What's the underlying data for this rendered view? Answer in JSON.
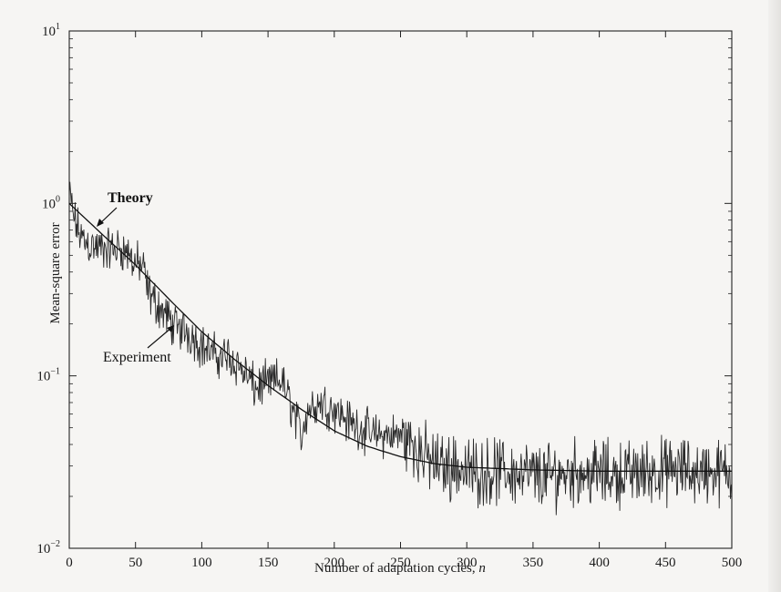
{
  "chart_data": {
    "type": "line",
    "xlabel": "Number of adaptation cycles,",
    "xlabel_var": "n",
    "ylabel": "Mean-square error",
    "x_ticks": [
      0,
      50,
      100,
      150,
      200,
      250,
      300,
      350,
      400,
      450,
      500
    ],
    "y_ticks": [
      {
        "value": 0.01,
        "base": "10",
        "exp": "−2"
      },
      {
        "value": 0.1,
        "base": "10",
        "exp": "−1"
      },
      {
        "value": 1,
        "base": "10",
        "exp": "0"
      },
      {
        "value": 10,
        "base": "10",
        "exp": "1"
      }
    ],
    "xlim": [
      0,
      500
    ],
    "ylim": [
      0.01,
      10
    ],
    "y_scale": "log",
    "grid": false,
    "annotations": [
      {
        "text": "Theory",
        "points_to": "Theory curve near n = 25"
      },
      {
        "text": "Experiment",
        "points_to": "Experiment curve near n = 70"
      }
    ],
    "series": [
      {
        "name": "Theory",
        "style": "smooth",
        "x": [
          0,
          25,
          50,
          75,
          100,
          125,
          150,
          175,
          200,
          225,
          250,
          275,
          300,
          325,
          350,
          400,
          450,
          500
        ],
        "y": [
          1.0,
          0.66,
          0.44,
          0.28,
          0.18,
          0.124,
          0.088,
          0.064,
          0.048,
          0.039,
          0.034,
          0.031,
          0.0295,
          0.029,
          0.0285,
          0.028,
          0.028,
          0.028
        ]
      },
      {
        "name": "Experiment",
        "style": "noisy",
        "x": [
          0,
          5,
          10,
          20,
          30,
          40,
          50,
          55,
          60,
          70,
          80,
          90,
          100,
          110,
          120,
          130,
          140,
          150,
          160,
          170,
          175,
          180,
          190,
          200,
          210,
          220,
          230,
          240,
          250,
          260,
          270,
          280,
          290,
          300,
          320,
          340,
          360,
          380,
          400,
          420,
          440,
          460,
          480,
          500
        ],
        "y": [
          1.1,
          0.75,
          0.62,
          0.55,
          0.54,
          0.55,
          0.45,
          0.43,
          0.3,
          0.24,
          0.19,
          0.18,
          0.15,
          0.13,
          0.13,
          0.11,
          0.085,
          0.09,
          0.095,
          0.06,
          0.045,
          0.065,
          0.07,
          0.065,
          0.055,
          0.05,
          0.045,
          0.045,
          0.045,
          0.04,
          0.033,
          0.03,
          0.03,
          0.028,
          0.028,
          0.027,
          0.026,
          0.028,
          0.027,
          0.027,
          0.028,
          0.028,
          0.028,
          0.027
        ]
      }
    ]
  }
}
